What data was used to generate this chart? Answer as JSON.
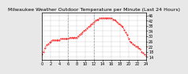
{
  "title": "Milwaukee Weather Outdoor Temperature per Minute (Last 24 Hours)",
  "bg_color": "#e8e8e8",
  "plot_bg_color": "#ffffff",
  "line_color": "#ff0000",
  "grid_color": "#aaaaaa",
  "vline_color": "#888888",
  "y_ticks": [
    14,
    18,
    22,
    26,
    30,
    34,
    38,
    42,
    46
  ],
  "ylim": [
    12,
    48
  ],
  "xlim": [
    0,
    1440
  ],
  "vlines": [
    360,
    720
  ],
  "x_values": [
    0,
    20,
    40,
    60,
    80,
    100,
    120,
    140,
    160,
    180,
    200,
    220,
    240,
    260,
    280,
    300,
    320,
    340,
    360,
    380,
    400,
    420,
    440,
    460,
    480,
    500,
    520,
    540,
    560,
    580,
    600,
    620,
    640,
    660,
    680,
    700,
    720,
    740,
    760,
    780,
    800,
    820,
    840,
    860,
    880,
    900,
    920,
    940,
    960,
    980,
    1000,
    1020,
    1040,
    1060,
    1080,
    1100,
    1120,
    1140,
    1160,
    1180,
    1200,
    1220,
    1240,
    1260,
    1280,
    1300,
    1320,
    1340,
    1360,
    1380,
    1400,
    1420,
    1440
  ],
  "y_values": [
    16,
    18,
    21,
    23,
    24,
    25,
    26,
    27,
    27,
    27,
    27,
    27,
    27,
    28,
    28,
    28,
    28,
    28,
    28,
    29,
    29,
    29,
    29,
    29,
    29,
    30,
    31,
    32,
    33,
    34,
    35,
    36,
    37,
    38,
    39,
    40,
    41,
    42,
    43,
    43,
    44,
    44,
    44,
    44,
    44,
    44,
    44,
    44,
    44,
    43,
    43,
    42,
    41,
    40,
    39,
    38,
    37,
    35,
    33,
    31,
    28,
    26,
    25,
    24,
    23,
    22,
    22,
    21,
    20,
    18,
    17,
    16,
    15
  ],
  "title_fontsize": 4.5,
  "tick_fontsize": 3.5,
  "linewidth": 0.7,
  "markersize": 0.8,
  "x_tick_positions": [
    0,
    120,
    240,
    360,
    480,
    600,
    720,
    840,
    960,
    1080,
    1200,
    1320,
    1440
  ],
  "x_tick_labels": [
    "0",
    "2",
    "4",
    "6",
    "8",
    "10",
    "12",
    "14",
    "16",
    "18",
    "20",
    "22",
    "24"
  ]
}
